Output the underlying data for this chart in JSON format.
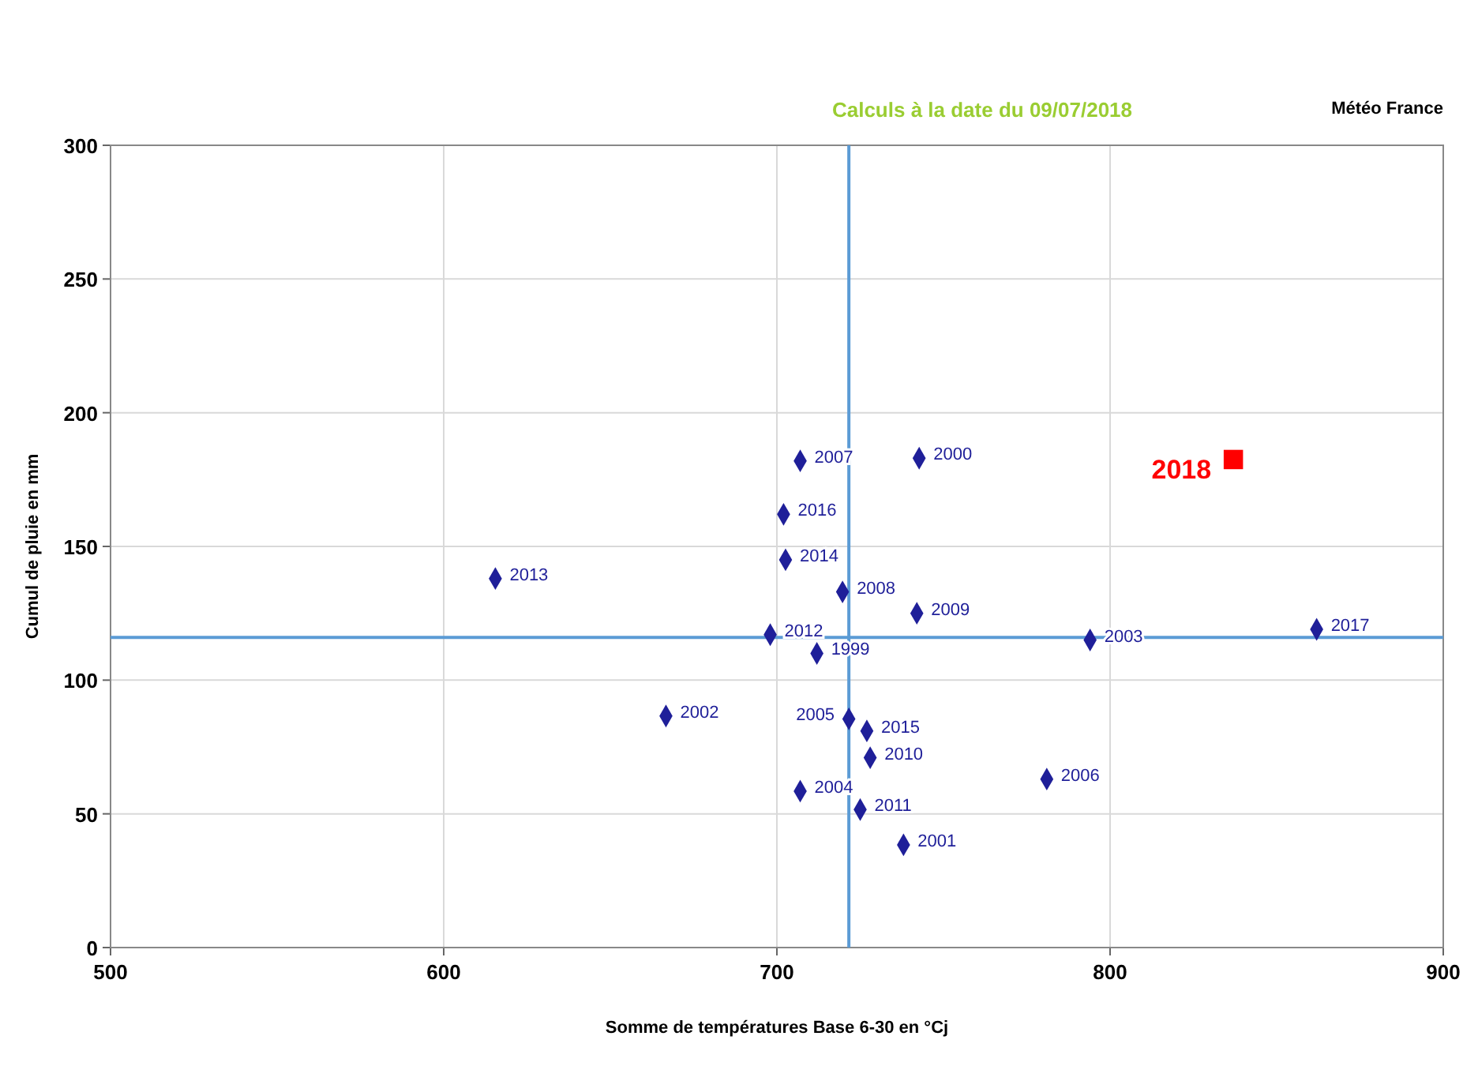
{
  "chart_data": {
    "type": "scatter",
    "title": "Calculs à la date du 09/07/2018",
    "annotations": [
      "Météo France"
    ],
    "xlabel": "Somme de températures Base 6-30 en °Cj",
    "ylabel": "Cumul de pluie en mm",
    "xlim": [
      500,
      900
    ],
    "ylim": [
      0,
      300
    ],
    "xticks": [
      500,
      600,
      700,
      800,
      900
    ],
    "yticks": [
      0,
      50,
      100,
      150,
      200,
      250,
      300
    ],
    "grid": true,
    "series": [
      {
        "name": "2013",
        "color": "#1f1f99",
        "marker": "diamond",
        "x": [
          615.5
        ],
        "values": [
          138
        ]
      },
      {
        "name": "2002",
        "color": "#1f1f99",
        "marker": "diamond",
        "x": [
          666.7
        ],
        "values": [
          86.6
        ]
      },
      {
        "name": "2012",
        "color": "#1f1f99",
        "marker": "diamond",
        "x": [
          698
        ],
        "values": [
          117
        ]
      },
      {
        "name": "1999",
        "color": "#1f1f99",
        "marker": "diamond",
        "x": [
          712
        ],
        "values": [
          110
        ]
      },
      {
        "name": "2007",
        "color": "#1f1f99",
        "marker": "diamond",
        "x": [
          707
        ],
        "values": [
          182
        ]
      },
      {
        "name": "2016",
        "color": "#1f1f99",
        "marker": "diamond",
        "x": [
          702
        ],
        "values": [
          162
        ]
      },
      {
        "name": "2014",
        "color": "#1f1f99",
        "marker": "diamond",
        "x": [
          702.6
        ],
        "values": [
          145
        ]
      },
      {
        "name": "2008",
        "color": "#1f1f99",
        "marker": "diamond",
        "x": [
          719.7
        ],
        "values": [
          133
        ]
      },
      {
        "name": "2000",
        "color": "#1f1f99",
        "marker": "diamond",
        "x": [
          742.7
        ],
        "values": [
          183
        ]
      },
      {
        "name": "2009",
        "color": "#1f1f99",
        "marker": "diamond",
        "x": [
          742
        ],
        "values": [
          125
        ]
      },
      {
        "name": "2005",
        "color": "#1f1f99",
        "marker": "diamond",
        "x": [
          721.6
        ],
        "values": [
          85.5
        ]
      },
      {
        "name": "2015",
        "color": "#1f1f99",
        "marker": "diamond",
        "x": [
          727
        ],
        "values": [
          81
        ]
      },
      {
        "name": "2010",
        "color": "#1f1f99",
        "marker": "diamond",
        "x": [
          728
        ],
        "values": [
          71
        ]
      },
      {
        "name": "2004",
        "color": "#1f1f99",
        "marker": "diamond",
        "x": [
          707
        ],
        "values": [
          58.5
        ]
      },
      {
        "name": "2011",
        "color": "#1f1f99",
        "marker": "diamond",
        "x": [
          725
        ],
        "values": [
          51.6
        ]
      },
      {
        "name": "2001",
        "color": "#1f1f99",
        "marker": "diamond",
        "x": [
          738
        ],
        "values": [
          38.4
        ]
      },
      {
        "name": "2003",
        "color": "#1f1f99",
        "marker": "diamond",
        "x": [
          794
        ],
        "values": [
          115
        ]
      },
      {
        "name": "2006",
        "color": "#1f1f99",
        "marker": "diamond",
        "x": [
          781
        ],
        "values": [
          63
        ]
      },
      {
        "name": "2017",
        "color": "#1f1f99",
        "marker": "diamond",
        "x": [
          862
        ],
        "values": [
          119
        ]
      },
      {
        "name": "2018",
        "color": "#ff0000",
        "marker": "square",
        "x": [
          837
        ],
        "values": [
          182.5
        ]
      }
    ],
    "ref_lines": [
      {
        "axis": "x",
        "value": 721.6,
        "color": "#5b9bd5"
      },
      {
        "axis": "y",
        "value": 116,
        "color": "#5b9bd5"
      }
    ]
  }
}
